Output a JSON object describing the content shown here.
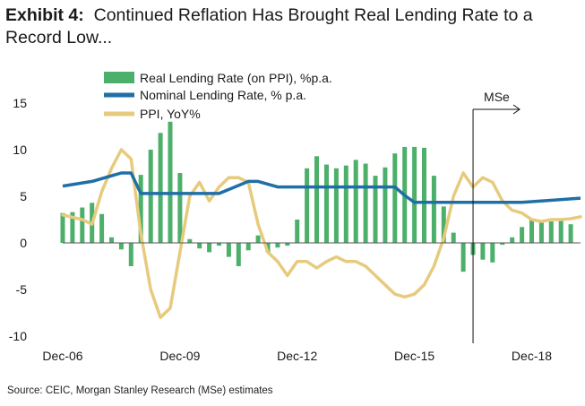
{
  "title": {
    "prefix": "Exhibit 4:",
    "text": "Continued Reflation Has Brought Real Lending Rate to a Record Low..."
  },
  "source": "Source: CEIC, Morgan Stanley Research (MSe) estimates",
  "colors": {
    "real": "#4caf6a",
    "nominal": "#1f6fa6",
    "ppi": "#e6cb7e"
  },
  "chart_data": {
    "type": "bar",
    "x_start": "Dec-06",
    "x_end": "Mar-20",
    "ylim": [
      -10,
      15
    ],
    "yticks": [
      15,
      10,
      5,
      0,
      -5,
      -10
    ],
    "xtick_labels": [
      "Dec-06",
      "Dec-09",
      "Dec-12",
      "Dec-15",
      "Dec-18"
    ],
    "forecast_marker": {
      "label": "MSe",
      "at": "Jun-17"
    },
    "legend": "top-left",
    "series": [
      {
        "name": "Real Lending Rate (on PPI), %p.a.",
        "type": "bar",
        "x": [
          "Dec-06",
          "Mar-07",
          "Jun-07",
          "Sep-07",
          "Dec-07",
          "Mar-08",
          "Jun-08",
          "Sep-08",
          "Dec-08",
          "Mar-09",
          "Jun-09",
          "Sep-09",
          "Dec-09",
          "Mar-10",
          "Jun-10",
          "Sep-10",
          "Dec-10",
          "Mar-11",
          "Jun-11",
          "Sep-11",
          "Dec-11",
          "Mar-12",
          "Jun-12",
          "Sep-12",
          "Dec-12",
          "Mar-13",
          "Jun-13",
          "Sep-13",
          "Dec-13",
          "Mar-14",
          "Jun-14",
          "Sep-14",
          "Dec-14",
          "Mar-15",
          "Jun-15",
          "Sep-15",
          "Dec-15",
          "Mar-16",
          "Jun-16",
          "Sep-16",
          "Dec-16",
          "Mar-17",
          "Jun-17",
          "Sep-17",
          "Dec-17",
          "Mar-18",
          "Jun-18",
          "Sep-18",
          "Dec-18",
          "Mar-19",
          "Jun-19",
          "Sep-19",
          "Dec-19"
        ],
        "values": [
          3.2,
          3.3,
          3.8,
          4.3,
          3.1,
          0.6,
          -0.7,
          -2.5,
          7.3,
          10.0,
          11.8,
          13.0,
          7.5,
          0.4,
          -0.6,
          -1.0,
          -0.3,
          -1.5,
          -2.5,
          -0.8,
          0.8,
          -1.0,
          -0.5,
          -0.3,
          2.5,
          8.0,
          9.3,
          8.4,
          8.0,
          8.3,
          8.9,
          8.5,
          7.2,
          8.1,
          9.6,
          10.3,
          10.3,
          10.2,
          7.2,
          3.9,
          1.1,
          -3.1,
          -1.3,
          -1.8,
          -2.1,
          -0.2,
          0.6,
          1.7,
          2.5,
          2.2,
          2.3,
          2.6,
          2.0
        ]
      },
      {
        "name": "Nominal Lending Rate, % p.a.",
        "type": "line",
        "x": [
          "Dec-06",
          "Sep-07",
          "Jun-08",
          "Sep-08",
          "Dec-08",
          "Dec-10",
          "Sep-11",
          "Dec-11",
          "Jun-12",
          "Jun-15",
          "Sep-15",
          "Dec-15",
          "Sep-18",
          "Mar-20"
        ],
        "values": [
          6.1,
          6.6,
          7.5,
          7.5,
          5.3,
          5.3,
          6.6,
          6.6,
          6.0,
          6.0,
          5.1,
          4.35,
          4.35,
          4.8
        ]
      },
      {
        "name": "PPI, YoY%",
        "type": "line",
        "x": [
          "Dec-06",
          "Jun-07",
          "Sep-07",
          "Dec-07",
          "Mar-08",
          "Jun-08",
          "Sep-08",
          "Dec-08",
          "Mar-09",
          "Jun-09",
          "Sep-09",
          "Dec-09",
          "Mar-10",
          "Jun-10",
          "Sep-10",
          "Dec-10",
          "Mar-11",
          "Jun-11",
          "Sep-11",
          "Dec-11",
          "Mar-12",
          "Jun-12",
          "Sep-12",
          "Dec-12",
          "Mar-13",
          "Jun-13",
          "Sep-13",
          "Dec-13",
          "Mar-14",
          "Jun-14",
          "Sep-14",
          "Dec-14",
          "Mar-15",
          "Jun-15",
          "Sep-15",
          "Dec-15",
          "Mar-16",
          "Jun-16",
          "Sep-16",
          "Dec-16",
          "Mar-17",
          "Jun-17",
          "Sep-17",
          "Dec-17",
          "Mar-18",
          "Jun-18",
          "Sep-18",
          "Dec-18",
          "Mar-19",
          "Jun-19",
          "Sep-19",
          "Dec-19",
          "Mar-20"
        ],
        "values": [
          3.0,
          2.5,
          2.0,
          5.5,
          8.0,
          10.0,
          9.0,
          1.0,
          -5.0,
          -8.0,
          -7.0,
          -1.0,
          5.0,
          6.5,
          4.5,
          6.0,
          7.0,
          7.0,
          6.5,
          2.0,
          -1.0,
          -2.0,
          -3.5,
          -2.0,
          -2.0,
          -2.7,
          -2.0,
          -1.5,
          -2.0,
          -2.0,
          -2.5,
          -3.5,
          -4.5,
          -5.5,
          -5.8,
          -5.5,
          -4.5,
          -2.5,
          0.5,
          5.0,
          7.5,
          6.0,
          7.0,
          6.5,
          4.5,
          3.5,
          3.2,
          2.5,
          2.3,
          2.5,
          2.5,
          2.6,
          2.8
        ]
      }
    ]
  }
}
